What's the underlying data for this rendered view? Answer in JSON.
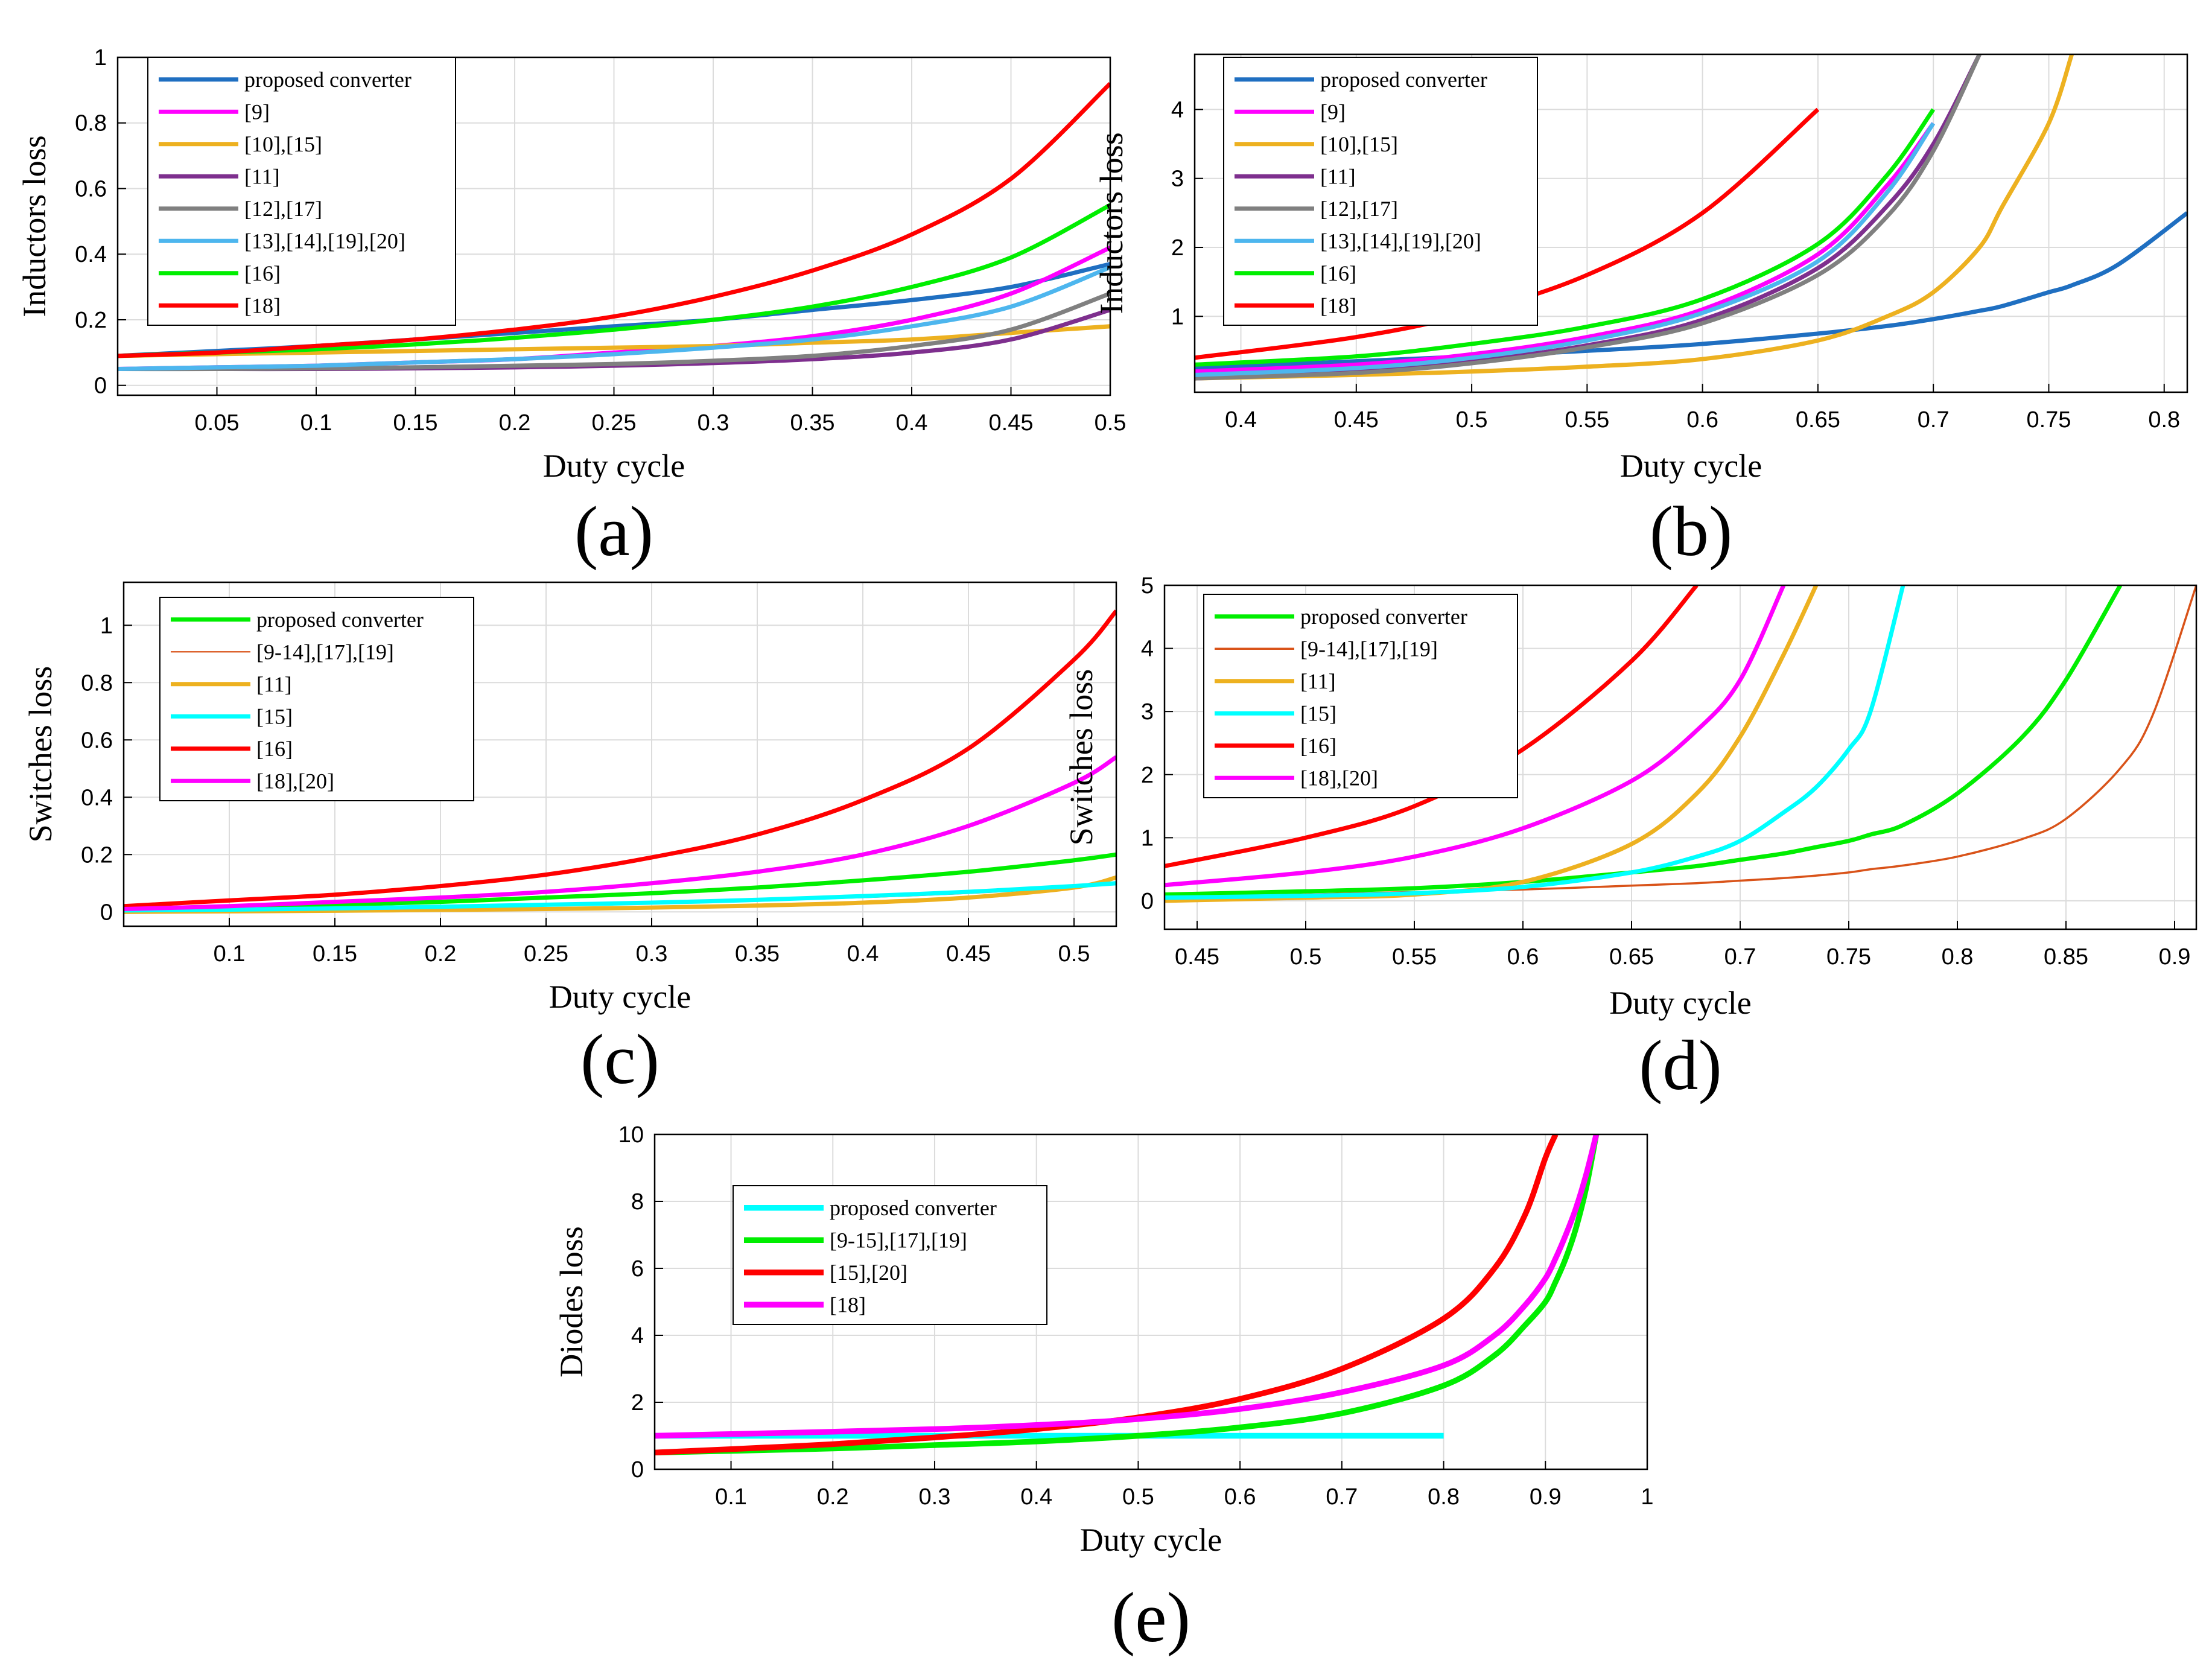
{
  "chart_data": [
    {
      "id": "a",
      "type": "line",
      "panel_label": "(a)",
      "xlabel": "Duty cycle",
      "ylabel": "Inductors loss",
      "xlim": [
        0.0,
        0.5
      ],
      "ylim": [
        -0.03,
        1.0
      ],
      "xticks": [
        0.05,
        0.1,
        0.15,
        0.2,
        0.25,
        0.3,
        0.35,
        0.4,
        0.45,
        0.5
      ],
      "xtick_labels": [
        "0.05",
        "0.1",
        "0.15",
        "0.2",
        "0.25",
        "0.3",
        "0.35",
        "0.4",
        "0.45",
        "0.5"
      ],
      "yticks": [
        0,
        0.2,
        0.4,
        0.6,
        0.8,
        1
      ],
      "ytick_labels": [
        "0",
        "0.2",
        "0.4",
        "0.6",
        "0.8",
        "1"
      ],
      "grid": true,
      "legend_position": "top-left",
      "x": [
        0.0,
        0.05,
        0.1,
        0.15,
        0.2,
        0.25,
        0.3,
        0.35,
        0.4,
        0.45,
        0.5
      ],
      "series": [
        {
          "name": "proposed converter",
          "color": "#1f6fc1",
          "width": 3,
          "values": [
            0.09,
            0.105,
            0.12,
            0.14,
            0.16,
            0.18,
            0.2,
            0.23,
            0.26,
            0.3,
            0.37
          ]
        },
        {
          "name": "[9]",
          "color": "#ff00ff",
          "width": 3,
          "values": [
            0.05,
            0.055,
            0.06,
            0.07,
            0.08,
            0.1,
            0.12,
            0.15,
            0.2,
            0.28,
            0.42
          ]
        },
        {
          "name": "[10],[15]",
          "color": "#edb120",
          "width": 3,
          "values": [
            0.09,
            0.095,
            0.1,
            0.105,
            0.11,
            0.115,
            0.12,
            0.13,
            0.14,
            0.16,
            0.18
          ]
        },
        {
          "name": "[11]",
          "color": "#7e2f8e",
          "width": 3,
          "values": [
            0.05,
            0.05,
            0.05,
            0.052,
            0.055,
            0.06,
            0.068,
            0.08,
            0.1,
            0.14,
            0.23
          ]
        },
        {
          "name": "[12],[17]",
          "color": "#808080",
          "width": 3,
          "values": [
            0.05,
            0.05,
            0.052,
            0.055,
            0.06,
            0.065,
            0.075,
            0.09,
            0.12,
            0.17,
            0.28
          ]
        },
        {
          "name": "[13],[14],[19],[20]",
          "color": "#4db6ee",
          "width": 3,
          "values": [
            0.05,
            0.055,
            0.06,
            0.07,
            0.08,
            0.095,
            0.115,
            0.14,
            0.18,
            0.24,
            0.36
          ]
        },
        {
          "name": "[16]",
          "color": "#00ee00",
          "width": 3,
          "values": [
            0.09,
            0.1,
            0.11,
            0.125,
            0.145,
            0.17,
            0.2,
            0.24,
            0.3,
            0.39,
            0.55
          ]
        },
        {
          "name": "[18]",
          "color": "#ff0000",
          "width": 3,
          "values": [
            0.09,
            0.1,
            0.12,
            0.14,
            0.17,
            0.21,
            0.27,
            0.35,
            0.46,
            0.63,
            0.92
          ]
        }
      ]
    },
    {
      "id": "b",
      "type": "line",
      "panel_label": "(b)",
      "xlabel": "Duty cycle",
      "ylabel": "Inductors loss",
      "xlim": [
        0.38,
        0.81
      ],
      "ylim": [
        -0.1,
        4.8
      ],
      "xticks": [
        0.4,
        0.45,
        0.5,
        0.55,
        0.6,
        0.65,
        0.7,
        0.75,
        0.8
      ],
      "xtick_labels": [
        "0.4",
        "0.45",
        "0.5",
        "0.55",
        "0.6",
        "0.65",
        "0.7",
        "0.75",
        "0.8"
      ],
      "yticks": [
        1,
        2,
        3,
        4
      ],
      "ytick_labels": [
        "1",
        "2",
        "3",
        "4"
      ],
      "grid": true,
      "legend_position": "top-left",
      "x": [
        0.38,
        0.45,
        0.5,
        0.55,
        0.6,
        0.65,
        0.68,
        0.7,
        0.72,
        0.73,
        0.75,
        0.76,
        0.78,
        0.81
      ],
      "series": [
        {
          "name": "proposed converter",
          "color": "#1f6fc1",
          "width": 3,
          "values": [
            0.25,
            0.35,
            0.42,
            0.5,
            0.6,
            0.75,
            0.86,
            0.96,
            1.08,
            1.15,
            1.35,
            1.45,
            1.75,
            2.5
          ]
        },
        {
          "name": "[9]",
          "color": "#ff00ff",
          "width": 3,
          "values": [
            0.2,
            0.3,
            0.45,
            0.7,
            1.1,
            1.9,
            2.9,
            3.8,
            null,
            null,
            null,
            null,
            null,
            null
          ]
        },
        {
          "name": "[10],[15]",
          "color": "#edb120",
          "width": 3,
          "values": [
            0.1,
            0.15,
            0.2,
            0.27,
            0.38,
            0.65,
            1.0,
            1.35,
            2.0,
            2.6,
            3.8,
            4.8,
            null,
            null
          ]
        },
        {
          "name": "[11]",
          "color": "#7e2f8e",
          "width": 3,
          "values": [
            0.1,
            0.2,
            0.35,
            0.58,
            0.95,
            1.7,
            2.6,
            3.5,
            4.8,
            null,
            null,
            null,
            null,
            null
          ]
        },
        {
          "name": "[12],[17]",
          "color": "#808080",
          "width": 3,
          "values": [
            0.1,
            0.18,
            0.32,
            0.55,
            0.9,
            1.6,
            2.45,
            3.4,
            4.8,
            null,
            null,
            null,
            null,
            null
          ]
        },
        {
          "name": "[13],[14],[19],[20]",
          "color": "#4db6ee",
          "width": 3,
          "values": [
            0.15,
            0.25,
            0.4,
            0.65,
            1.05,
            1.8,
            2.8,
            3.8,
            null,
            null,
            null,
            null,
            null,
            null
          ]
        },
        {
          "name": "[16]",
          "color": "#00ee00",
          "width": 3,
          "values": [
            0.3,
            0.42,
            0.6,
            0.85,
            1.25,
            2.05,
            3.05,
            4.0,
            null,
            null,
            null,
            null,
            null,
            null
          ]
        },
        {
          "name": "[18]",
          "color": "#ff0000",
          "width": 3,
          "values": [
            0.4,
            0.7,
            1.05,
            1.6,
            2.5,
            4.0,
            null,
            null,
            null,
            null,
            null,
            null,
            null,
            null
          ]
        }
      ]
    },
    {
      "id": "c",
      "type": "line",
      "panel_label": "(c)",
      "xlabel": "Duty cycle",
      "ylabel": "Switches loss",
      "xlim": [
        0.05,
        0.52
      ],
      "ylim": [
        -0.05,
        1.15
      ],
      "xticks": [
        0.1,
        0.15,
        0.2,
        0.25,
        0.3,
        0.35,
        0.4,
        0.45,
        0.5
      ],
      "xtick_labels": [
        "0.1",
        "0.15",
        "0.2",
        "0.25",
        "0.3",
        "0.35",
        "0.4",
        "0.45",
        "0.5"
      ],
      "yticks": [
        0,
        0.2,
        0.4,
        0.6,
        0.8,
        1
      ],
      "ytick_labels": [
        "0",
        "0.2",
        "0.4",
        "0.6",
        "0.8",
        "1"
      ],
      "grid": true,
      "legend_position": "top-left",
      "x": [
        0.05,
        0.1,
        0.15,
        0.2,
        0.25,
        0.3,
        0.35,
        0.4,
        0.45,
        0.5,
        0.52
      ],
      "series": [
        {
          "name": "proposed converter",
          "color": "#00ee00",
          "width": 3,
          "values": [
            0.01,
            0.015,
            0.025,
            0.035,
            0.05,
            0.065,
            0.085,
            0.11,
            0.14,
            0.18,
            0.2
          ]
        },
        {
          "name": "[9-14],[17],[19]",
          "color": "#d95319",
          "width": 1,
          "values": [
            0.005,
            0.008,
            0.012,
            0.016,
            0.022,
            0.03,
            0.04,
            0.05,
            0.065,
            0.085,
            0.1
          ]
        },
        {
          "name": "[11]",
          "color": "#edb120",
          "width": 3,
          "values": [
            0.0,
            0.002,
            0.004,
            0.007,
            0.01,
            0.015,
            0.022,
            0.032,
            0.05,
            0.085,
            0.12
          ]
        },
        {
          "name": "[15]",
          "color": "#00ffff",
          "width": 3,
          "values": [
            0.005,
            0.008,
            0.012,
            0.018,
            0.025,
            0.032,
            0.042,
            0.055,
            0.07,
            0.09,
            0.1
          ]
        },
        {
          "name": "[16]",
          "color": "#ff0000",
          "width": 3,
          "values": [
            0.02,
            0.04,
            0.06,
            0.09,
            0.13,
            0.19,
            0.27,
            0.39,
            0.57,
            0.88,
            1.05
          ]
        },
        {
          "name": "[18],[20]",
          "color": "#ff00ff",
          "width": 3,
          "values": [
            0.01,
            0.02,
            0.035,
            0.05,
            0.07,
            0.1,
            0.14,
            0.2,
            0.3,
            0.45,
            0.54
          ]
        }
      ]
    },
    {
      "id": "d",
      "type": "line",
      "panel_label": "(d)",
      "xlabel": "Duty cycle",
      "ylabel": "Switches loss",
      "xlim": [
        0.435,
        0.91
      ],
      "ylim": [
        -0.45,
        5.0
      ],
      "xticks": [
        0.45,
        0.5,
        0.55,
        0.6,
        0.65,
        0.7,
        0.75,
        0.8,
        0.85,
        0.9
      ],
      "xtick_labels": [
        "0.45",
        "0.5",
        "0.55",
        "0.6",
        "0.65",
        "0.7",
        "0.75",
        "0.8",
        "0.85",
        "0.9"
      ],
      "yticks": [
        0,
        1,
        2,
        3,
        4,
        5
      ],
      "ytick_labels": [
        "0",
        "1",
        "2",
        "3",
        "4",
        "5"
      ],
      "grid": true,
      "legend_position": "top-left",
      "x": [
        0.435,
        0.5,
        0.55,
        0.6,
        0.65,
        0.68,
        0.7,
        0.72,
        0.735,
        0.75,
        0.76,
        0.775,
        0.8,
        0.83,
        0.85,
        0.875,
        0.89,
        0.91
      ],
      "series": [
        {
          "name": "proposed converter",
          "color": "#00ee00",
          "width": 3,
          "values": [
            0.1,
            0.15,
            0.2,
            0.3,
            0.45,
            0.55,
            0.65,
            0.75,
            0.85,
            0.95,
            1.05,
            1.2,
            1.7,
            2.6,
            3.5,
            5.0,
            null,
            null
          ]
        },
        {
          "name": "[9-14],[17],[19]",
          "color": "#d95319",
          "width": 1.5,
          "values": [
            0.05,
            0.1,
            0.14,
            0.18,
            0.24,
            0.28,
            0.32,
            0.36,
            0.4,
            0.45,
            0.5,
            0.56,
            0.7,
            0.98,
            1.3,
            2.1,
            2.95,
            5.0
          ]
        },
        {
          "name": "[11]",
          "color": "#edb120",
          "width": 3,
          "values": [
            0.0,
            0.05,
            0.1,
            0.3,
            0.9,
            1.7,
            2.6,
            3.9,
            5.0,
            null,
            null,
            null,
            null,
            null,
            null,
            null,
            null,
            null
          ]
        },
        {
          "name": "[15]",
          "color": "#00ffff",
          "width": 3,
          "values": [
            0.05,
            0.08,
            0.12,
            0.22,
            0.45,
            0.7,
            0.95,
            1.4,
            1.8,
            2.4,
            3.0,
            5.0,
            null,
            null,
            null,
            null,
            null,
            null
          ]
        },
        {
          "name": "[16]",
          "color": "#ff0000",
          "width": 3,
          "values": [
            0.55,
            1.0,
            1.5,
            2.4,
            3.8,
            5.0,
            null,
            null,
            null,
            null,
            null,
            null,
            null,
            null,
            null,
            null,
            null,
            null
          ]
        },
        {
          "name": "[18],[20]",
          "color": "#ff00ff",
          "width": 3,
          "values": [
            0.25,
            0.45,
            0.7,
            1.15,
            1.9,
            2.7,
            3.5,
            5.0,
            null,
            null,
            null,
            null,
            null,
            null,
            null,
            null,
            null,
            null
          ]
        }
      ]
    },
    {
      "id": "e",
      "type": "line",
      "panel_label": "(e)",
      "xlabel": "Duty cycle",
      "ylabel": "Diodes loss",
      "xlim": [
        0.025,
        1.0
      ],
      "ylim": [
        0,
        10
      ],
      "xticks": [
        0.1,
        0.2,
        0.3,
        0.4,
        0.5,
        0.6,
        0.7,
        0.8,
        0.9,
        1
      ],
      "xtick_labels": [
        "0.1",
        "0.2",
        "0.3",
        "0.4",
        "0.5",
        "0.6",
        "0.7",
        "0.8",
        "0.9",
        "1"
      ],
      "yticks": [
        0,
        2,
        4,
        6,
        8,
        10
      ],
      "ytick_labels": [
        "0",
        "2",
        "4",
        "6",
        "8",
        "10"
      ],
      "grid": true,
      "legend_position": "upper-left",
      "x": [
        0.025,
        0.1,
        0.2,
        0.3,
        0.4,
        0.5,
        0.6,
        0.7,
        0.8,
        0.85,
        0.88,
        0.9,
        0.91,
        0.92,
        0.93,
        0.94,
        0.95
      ],
      "series": [
        {
          "name": "proposed converter",
          "color": "#00ffff",
          "width": 4,
          "values": [
            1.0,
            1.0,
            1.0,
            1.0,
            1.0,
            1.0,
            1.0,
            1.0,
            1.0,
            null,
            null,
            null,
            null,
            null,
            null,
            null,
            null
          ]
        },
        {
          "name": "[9-15],[17],[19]",
          "color": "#00ee00",
          "width": 4,
          "values": [
            0.5,
            0.55,
            0.62,
            0.72,
            0.83,
            1.0,
            1.25,
            1.67,
            2.5,
            3.4,
            4.3,
            5.0,
            5.6,
            6.3,
            7.2,
            8.4,
            10.0
          ]
        },
        {
          "name": "[15],[20]",
          "color": "#ff0000",
          "width": 4,
          "values": [
            0.5,
            0.6,
            0.75,
            0.95,
            1.2,
            1.55,
            2.1,
            3.0,
            4.5,
            6.0,
            7.6,
            9.3,
            10.0,
            null,
            null,
            null,
            null
          ]
        },
        {
          "name": "[18]",
          "color": "#ff00ff",
          "width": 4,
          "values": [
            1.0,
            1.05,
            1.12,
            1.2,
            1.32,
            1.5,
            1.8,
            2.3,
            3.1,
            4.0,
            4.9,
            5.7,
            6.3,
            7.0,
            7.8,
            8.8,
            10.0
          ]
        }
      ]
    }
  ]
}
